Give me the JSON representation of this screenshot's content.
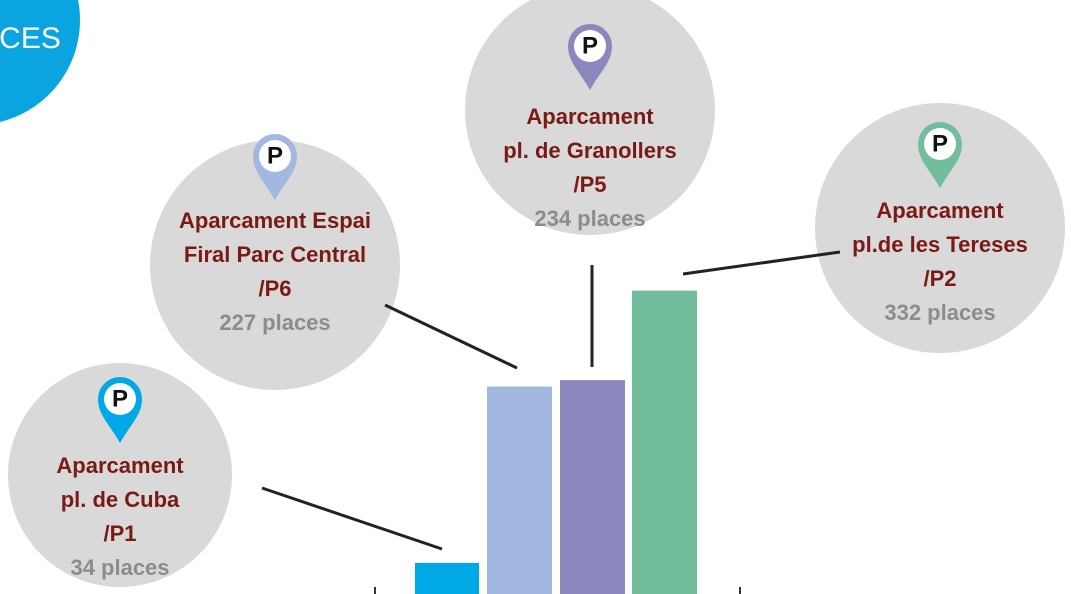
{
  "corner_text": "CES",
  "pin_label": "P",
  "chart_data": {
    "type": "bar",
    "categories": [
      [
        "Aparcament",
        "pl. de Cuba",
        "/P1"
      ],
      [
        "Aparcament Espai",
        "Firal Parc Central",
        "/P6"
      ],
      [
        "Aparcament",
        "pl. de Granollers",
        "/P5"
      ],
      [
        "Aparcament",
        "pl.de les Tereses",
        "/P2"
      ]
    ],
    "values": [
      34,
      227,
      234,
      332
    ],
    "value_labels": [
      "34 places",
      "227 places",
      "234 places",
      "332 places"
    ],
    "colors": [
      "#00a8e6",
      "#a3b8e0",
      "#8a88bc",
      "#72be9c"
    ],
    "ylim": [
      0,
      650
    ]
  }
}
